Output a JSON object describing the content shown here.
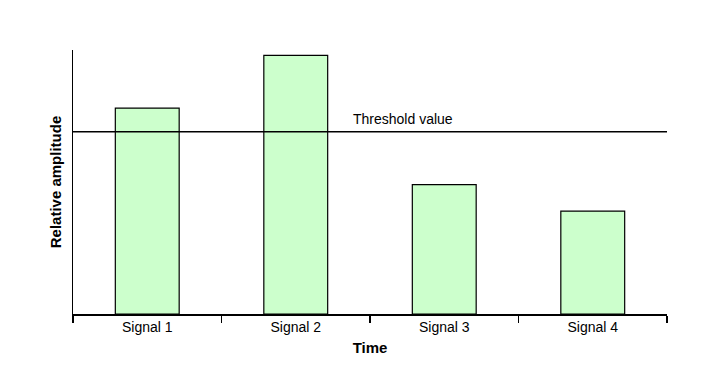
{
  "chart_data": {
    "type": "bar",
    "x_label": "Time",
    "y_label": "Relative amplitude",
    "categories": [
      "Signal 1",
      "Signal 2",
      "Signal 3",
      "Signal 4"
    ],
    "values": [
      78,
      98,
      49,
      39
    ],
    "color": "#ccffcc",
    "ylim": [
      0,
      100
    ],
    "yticks": [],
    "tick_labels": "x",
    "grid": false,
    "annotations": [
      {
        "text": "Threshold value",
        "value": 69
      }
    ]
  }
}
